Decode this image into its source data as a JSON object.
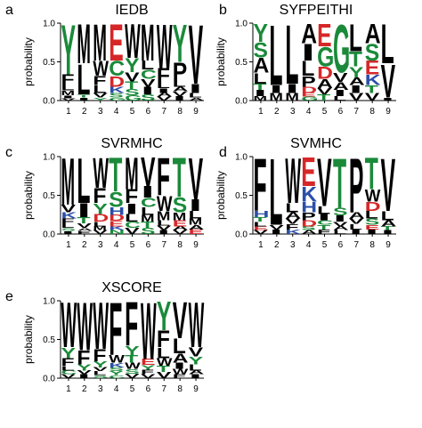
{
  "chart_data": [
    {
      "type": "sequence-logo",
      "panel": "a",
      "title": "IEDB",
      "ylabel": "probability",
      "ylim": [
        0,
        1.0
      ],
      "yticks": [
        "0.0",
        "0.5",
        "1.0"
      ],
      "positions": [
        "1",
        "2",
        "3",
        "4",
        "5",
        "6",
        "7",
        "8",
        "9"
      ],
      "columns": [
        [
          [
            "Y",
            0.66
          ],
          [
            "F",
            0.13
          ],
          [
            "L",
            0.08
          ],
          [
            "M",
            0.06
          ],
          [
            "I",
            0.04
          ],
          [
            "V",
            0.03
          ]
        ],
        [
          [
            "M",
            0.52
          ],
          [
            "L",
            0.4
          ],
          [
            "I",
            0.04
          ],
          [
            "T",
            0.04
          ]
        ],
        [
          [
            "M",
            0.48
          ],
          [
            "W",
            0.2
          ],
          [
            "F",
            0.12
          ],
          [
            "L",
            0.1
          ],
          [
            "V",
            0.06
          ],
          [
            "Y",
            0.04
          ]
        ],
        [
          [
            "E",
            0.48
          ],
          [
            "C",
            0.2
          ],
          [
            "D",
            0.14
          ],
          [
            "K",
            0.08
          ],
          [
            "S",
            0.06
          ],
          [
            "G",
            0.04
          ]
        ],
        [
          [
            "W",
            0.45
          ],
          [
            "Y",
            0.18
          ],
          [
            "V",
            0.12
          ],
          [
            "T",
            0.1
          ],
          [
            "S",
            0.08
          ],
          [
            "G",
            0.07
          ]
        ],
        [
          [
            "M",
            0.48
          ],
          [
            "C",
            0.12
          ],
          [
            "L",
            0.12
          ],
          [
            "I",
            0.1
          ],
          [
            "V",
            0.1
          ],
          [
            "S",
            0.08
          ]
        ],
        [
          [
            "W",
            0.58
          ],
          [
            "F",
            0.18
          ],
          [
            "L",
            0.08
          ],
          [
            "I",
            0.06
          ],
          [
            "V",
            0.05
          ],
          [
            "A",
            0.05
          ]
        ],
        [
          [
            "Y",
            0.5
          ],
          [
            "P",
            0.24
          ],
          [
            "L",
            0.08
          ],
          [
            "I",
            0.06
          ],
          [
            "V",
            0.06
          ],
          [
            "A",
            0.06
          ]
        ],
        [
          [
            "V",
            0.78
          ],
          [
            "I",
            0.12
          ],
          [
            "L",
            0.06
          ],
          [
            "A",
            0.04
          ]
        ]
      ]
    },
    {
      "type": "sequence-logo",
      "panel": "b",
      "title": "SYFPEITHI",
      "ylabel": "probability",
      "ylim": [
        0,
        1.0
      ],
      "yticks": [
        "0.0",
        "0.5",
        "1.0"
      ],
      "positions": [
        "1",
        "2",
        "3",
        "4",
        "5",
        "6",
        "7",
        "8",
        "9"
      ],
      "columns": [
        [
          [
            "Y",
            0.24
          ],
          [
            "A",
            0.2
          ],
          [
            "S",
            0.2
          ],
          [
            "L",
            0.14
          ],
          [
            "I",
            0.08
          ],
          [
            "T",
            0.08
          ],
          [
            "M",
            0.06
          ]
        ],
        [
          [
            "L",
            0.8
          ],
          [
            "M",
            0.1
          ],
          [
            "I",
            0.1
          ]
        ],
        [
          [
            "L",
            0.78
          ],
          [
            "I",
            0.12
          ],
          [
            "M",
            0.1
          ]
        ],
        [
          [
            "A",
            0.26
          ],
          [
            "I",
            0.22
          ],
          [
            "L",
            0.2
          ],
          [
            "P",
            0.14
          ],
          [
            "D",
            0.08
          ],
          [
            "G",
            0.05
          ],
          [
            "E",
            0.05
          ]
        ],
        [
          [
            "E",
            0.3
          ],
          [
            "G",
            0.26
          ],
          [
            "D",
            0.16
          ],
          [
            "A",
            0.12
          ],
          [
            "T",
            0.08
          ],
          [
            "V",
            0.08
          ]
        ],
        [
          [
            "G",
            0.64
          ],
          [
            "V",
            0.12
          ],
          [
            "A",
            0.1
          ],
          [
            "I",
            0.08
          ],
          [
            "L",
            0.06
          ]
        ],
        [
          [
            "L",
            0.36
          ],
          [
            "T",
            0.2
          ],
          [
            "Y",
            0.14
          ],
          [
            "V",
            0.1
          ],
          [
            "I",
            0.1
          ],
          [
            "A",
            0.1
          ]
        ],
        [
          [
            "A",
            0.26
          ],
          [
            "S",
            0.22
          ],
          [
            "E",
            0.18
          ],
          [
            "K",
            0.14
          ],
          [
            "V",
            0.1
          ],
          [
            "T",
            0.1
          ]
        ],
        [
          [
            "L",
            0.52
          ],
          [
            "V",
            0.44
          ],
          [
            "I",
            0.04
          ]
        ]
      ]
    },
    {
      "type": "sequence-logo",
      "panel": "c",
      "title": "SVRMHC",
      "ylabel": "probability",
      "ylim": [
        0,
        1.0
      ],
      "yticks": [
        "0.0",
        "0.5",
        "1.0"
      ],
      "positions": [
        "1",
        "2",
        "3",
        "4",
        "5",
        "6",
        "7",
        "8",
        "9"
      ],
      "columns": [
        [
          [
            "M",
            0.62
          ],
          [
            "V",
            0.1
          ],
          [
            "K",
            0.08
          ],
          [
            "F",
            0.07
          ],
          [
            "L",
            0.05
          ],
          [
            "I",
            0.04
          ],
          [
            "S",
            0.04
          ]
        ],
        [
          [
            "L",
            0.6
          ],
          [
            "I",
            0.18
          ],
          [
            "T",
            0.08
          ],
          [
            "V",
            0.06
          ],
          [
            "F",
            0.04
          ],
          [
            "A",
            0.04
          ]
        ],
        [
          [
            "W",
            0.4
          ],
          [
            "F",
            0.2
          ],
          [
            "Y",
            0.14
          ],
          [
            "D",
            0.1
          ],
          [
            "L",
            0.06
          ],
          [
            "V",
            0.05
          ],
          [
            "M",
            0.05
          ]
        ],
        [
          [
            "T",
            0.45
          ],
          [
            "S",
            0.2
          ],
          [
            "H",
            0.1
          ],
          [
            "D",
            0.08
          ],
          [
            "E",
            0.07
          ],
          [
            "N",
            0.05
          ],
          [
            "K",
            0.05
          ]
        ],
        [
          [
            "M",
            0.42
          ],
          [
            "F",
            0.18
          ],
          [
            "I",
            0.14
          ],
          [
            "L",
            0.1
          ],
          [
            "V",
            0.08
          ],
          [
            "C",
            0.08
          ]
        ],
        [
          [
            "V",
            0.38
          ],
          [
            "I",
            0.15
          ],
          [
            "C",
            0.12
          ],
          [
            "L",
            0.1
          ],
          [
            "M",
            0.09
          ],
          [
            "S",
            0.08
          ],
          [
            "T",
            0.08
          ]
        ],
        [
          [
            "F",
            0.5
          ],
          [
            "W",
            0.2
          ],
          [
            "M",
            0.12
          ],
          [
            "L",
            0.07
          ],
          [
            "V",
            0.06
          ],
          [
            "I",
            0.05
          ]
        ],
        [
          [
            "T",
            0.52
          ],
          [
            "S",
            0.2
          ],
          [
            "M",
            0.1
          ],
          [
            "E",
            0.08
          ],
          [
            "V",
            0.05
          ],
          [
            "A",
            0.05
          ]
        ],
        [
          [
            "V",
            0.55
          ],
          [
            "I",
            0.15
          ],
          [
            "L",
            0.1
          ],
          [
            "M",
            0.08
          ],
          [
            "E",
            0.06
          ],
          [
            "A",
            0.06
          ]
        ]
      ]
    },
    {
      "type": "sequence-logo",
      "panel": "d",
      "title": "SVMHC",
      "ylabel": "probability",
      "ylim": [
        0,
        1.0
      ],
      "yticks": [
        "0.0",
        "0.5",
        "1.0"
      ],
      "positions": [
        "1",
        "2",
        "3",
        "4",
        "5",
        "6",
        "7",
        "8",
        "9"
      ],
      "columns": [
        [
          [
            "F",
            0.7
          ],
          [
            "H",
            0.08
          ],
          [
            "L",
            0.06
          ],
          [
            "T",
            0.06
          ],
          [
            "V",
            0.05
          ],
          [
            "E",
            0.05
          ]
        ],
        [
          [
            "L",
            0.88
          ],
          [
            "I",
            0.06
          ],
          [
            "V",
            0.06
          ]
        ],
        [
          [
            "W",
            0.6
          ],
          [
            "L",
            0.12
          ],
          [
            "A",
            0.08
          ],
          [
            "F",
            0.07
          ],
          [
            "V",
            0.07
          ],
          [
            "K",
            0.06
          ]
        ],
        [
          [
            "E",
            0.38
          ],
          [
            "K",
            0.2
          ],
          [
            "H",
            0.14
          ],
          [
            "P",
            0.1
          ],
          [
            "D",
            0.08
          ],
          [
            "A",
            0.05
          ],
          [
            "S",
            0.05
          ]
        ],
        [
          [
            "V",
            0.64
          ],
          [
            "L",
            0.1
          ],
          [
            "I",
            0.08
          ],
          [
            "F",
            0.06
          ],
          [
            "T",
            0.06
          ],
          [
            "C",
            0.06
          ]
        ],
        [
          [
            "T",
            0.66
          ],
          [
            "S",
            0.1
          ],
          [
            "I",
            0.08
          ],
          [
            "V",
            0.06
          ],
          [
            "L",
            0.05
          ],
          [
            "A",
            0.05
          ]
        ],
        [
          [
            "P",
            0.72
          ],
          [
            "A",
            0.08
          ],
          [
            "L",
            0.07
          ],
          [
            "V",
            0.07
          ],
          [
            "I",
            0.06
          ]
        ],
        [
          [
            "T",
            0.42
          ],
          [
            "W",
            0.16
          ],
          [
            "D",
            0.12
          ],
          [
            "L",
            0.1
          ],
          [
            "S",
            0.08
          ],
          [
            "I",
            0.06
          ],
          [
            "E",
            0.06
          ]
        ],
        [
          [
            "V",
            0.7
          ],
          [
            "L",
            0.12
          ],
          [
            "A",
            0.08
          ],
          [
            "I",
            0.05
          ],
          [
            "T",
            0.05
          ]
        ]
      ]
    },
    {
      "type": "sequence-logo",
      "panel": "e",
      "title": "XSCORE",
      "ylabel": "probability",
      "ylim": [
        0,
        1.0
      ],
      "yticks": [
        "0.0",
        "0.5",
        "1.0"
      ],
      "positions": [
        "1",
        "2",
        "3",
        "4",
        "5",
        "6",
        "7",
        "8",
        "9"
      ],
      "columns": [
        [
          [
            "W",
            0.6
          ],
          [
            "Y",
            0.14
          ],
          [
            "F",
            0.1
          ],
          [
            "L",
            0.06
          ],
          [
            "V",
            0.05
          ],
          [
            "C",
            0.05
          ]
        ],
        [
          [
            "W",
            0.64
          ],
          [
            "F",
            0.18
          ],
          [
            "Y",
            0.08
          ],
          [
            "I",
            0.05
          ],
          [
            "V",
            0.05
          ]
        ],
        [
          [
            "W",
            0.62
          ],
          [
            "F",
            0.16
          ],
          [
            "Y",
            0.08
          ],
          [
            "L",
            0.05
          ],
          [
            "V",
            0.05
          ],
          [
            "S",
            0.04
          ]
        ],
        [
          [
            "F",
            0.7
          ],
          [
            "W",
            0.1
          ],
          [
            "K",
            0.06
          ],
          [
            "Y",
            0.05
          ],
          [
            "S",
            0.05
          ],
          [
            "C",
            0.04
          ]
        ],
        [
          [
            "F",
            0.58
          ],
          [
            "Y",
            0.12
          ],
          [
            "T",
            0.1
          ],
          [
            "W",
            0.08
          ],
          [
            "V",
            0.06
          ],
          [
            "S",
            0.06
          ]
        ],
        [
          [
            "W",
            0.75
          ],
          [
            "E",
            0.08
          ],
          [
            "F",
            0.06
          ],
          [
            "Y",
            0.06
          ],
          [
            "V",
            0.05
          ]
        ],
        [
          [
            "Y",
            0.38
          ],
          [
            "F",
            0.22
          ],
          [
            "L",
            0.14
          ],
          [
            "W",
            0.1
          ],
          [
            "V",
            0.08
          ],
          [
            "T",
            0.08
          ]
        ],
        [
          [
            "V",
            0.48
          ],
          [
            "L",
            0.2
          ],
          [
            "A",
            0.12
          ],
          [
            "I",
            0.08
          ],
          [
            "W",
            0.07
          ],
          [
            "F",
            0.05
          ]
        ],
        [
          [
            "W",
            0.6
          ],
          [
            "V",
            0.12
          ],
          [
            "Y",
            0.1
          ],
          [
            "L",
            0.08
          ],
          [
            "I",
            0.05
          ],
          [
            "A",
            0.05
          ]
        ]
      ]
    }
  ],
  "colors": {
    "hydrophobic": "#000000",
    "polar": "#1a8a3a",
    "acidic": "#d62728",
    "basic": "#2a4fa8",
    "axis": "#000000"
  },
  "residue_color_map": {
    "A": "hydrophobic",
    "C": "polar",
    "D": "acidic",
    "E": "acidic",
    "F": "hydrophobic",
    "G": "polar",
    "H": "basic",
    "I": "hydrophobic",
    "K": "basic",
    "L": "hydrophobic",
    "M": "hydrophobic",
    "N": "polar",
    "P": "hydrophobic",
    "Q": "polar",
    "R": "basic",
    "S": "polar",
    "T": "polar",
    "V": "hydrophobic",
    "W": "hydrophobic",
    "Y": "polar"
  }
}
